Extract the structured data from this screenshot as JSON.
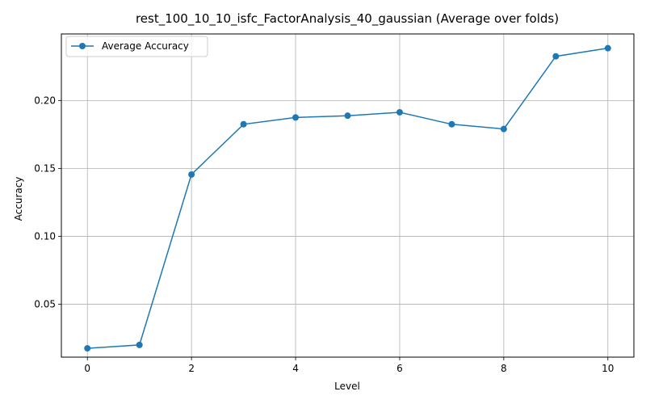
{
  "chart_data": {
    "type": "line",
    "title": "rest_100_10_10_isfc_FactorAnalysis_40_gaussian (Average over folds)",
    "xlabel": "Level",
    "ylabel": "Accuracy",
    "xlim": [
      -0.5,
      10.5
    ],
    "ylim": [
      0.011,
      0.249
    ],
    "xticks": [
      0,
      2,
      4,
      6,
      8,
      10
    ],
    "yticks": [
      0.05,
      0.1,
      0.15,
      0.2
    ],
    "xtick_labels": [
      "0",
      "2",
      "4",
      "6",
      "8",
      "10"
    ],
    "ytick_labels": [
      "0.05",
      "0.10",
      "0.15",
      "0.20"
    ],
    "grid": true,
    "legend_position": "top-left",
    "colors": {
      "line": "#1f77b4",
      "grid": "#b0b0b0",
      "frame": "#000000"
    },
    "series": [
      {
        "name": "Average Accuracy",
        "marker": "circle",
        "x": [
          0,
          1,
          2,
          3,
          4,
          5,
          6,
          7,
          8,
          9,
          10
        ],
        "y": [
          0.0175,
          0.02,
          0.1455,
          0.1825,
          0.1875,
          0.1888,
          0.1913,
          0.1825,
          0.179,
          0.2325,
          0.2385
        ]
      }
    ]
  }
}
